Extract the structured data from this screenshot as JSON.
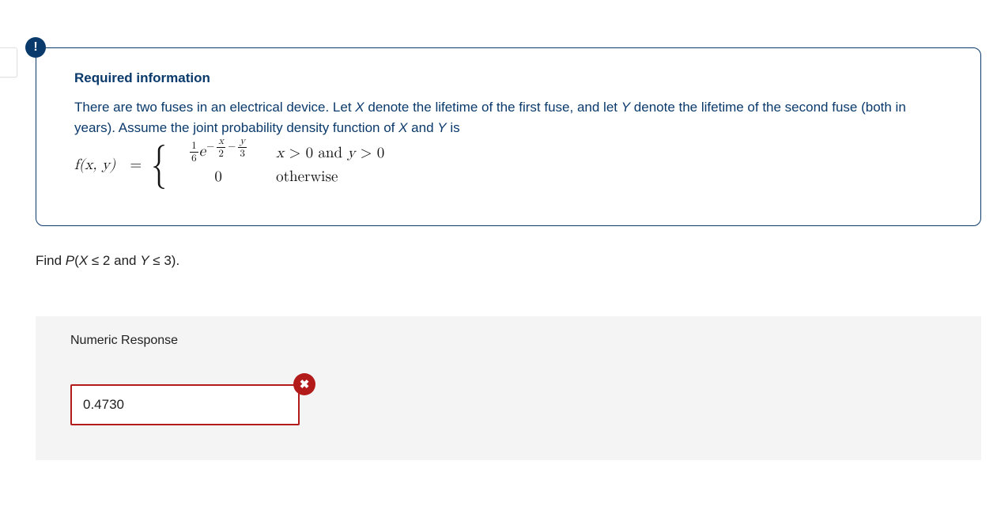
{
  "info": {
    "icon_glyph": "!",
    "heading": "Required information",
    "paragraph_parts": {
      "p1": "There are two fuses in an electrical device. Let ",
      "varX1": "X",
      "p2": " denote the lifetime of the first fuse, and let ",
      "varY1": "Y",
      "p3": " denote the lifetime of the second fuse (both in years). Assume the joint probability density function of ",
      "varX2": "X",
      "and": " and ",
      "varY2": "Y",
      "p4": " is"
    },
    "formula": {
      "lhs_f": "f",
      "lhs_args_open": "(",
      "lhs_x": "x",
      "lhs_comma": ", ",
      "lhs_y": "y",
      "lhs_args_close": ")",
      "equals": "=",
      "case1": {
        "coef_num": "1",
        "coef_den": "6",
        "e": "e",
        "minus": "−",
        "exp_x": "x",
        "exp_x_den": "2",
        "exp_sep": "−",
        "exp_y": "y",
        "exp_y_den": "3",
        "cond_x": "x",
        "cond_gt1": " > 0 and ",
        "cond_y": "y",
        "cond_gt2": " > 0"
      },
      "case2": {
        "value": "0",
        "cond": "otherwise"
      }
    }
  },
  "question": {
    "prefix": "Find ",
    "P": "P",
    "open": "(",
    "X": "X",
    "le1": " ≤ 2 and ",
    "Y": "Y",
    "le2": " ≤ 3).",
    "suffix": ""
  },
  "response": {
    "heading": "Numeric Response",
    "answer_value": "0.4730",
    "wrong_glyph": "✖",
    "is_correct": false
  },
  "colors": {
    "brand_navy": "#0a3a6b",
    "error_red": "#b31b1b",
    "panel_bg": "#f4f4f4"
  }
}
